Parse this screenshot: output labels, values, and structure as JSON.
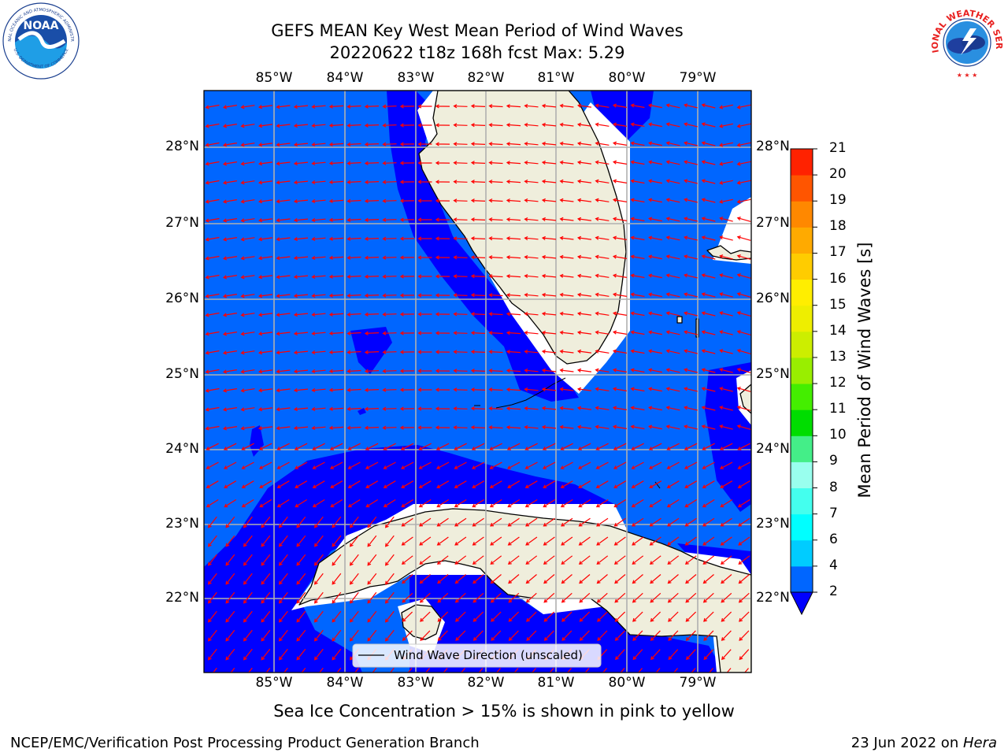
{
  "title_line1": "GEFS MEAN Key West Mean Period of Wind Waves",
  "title_line2": "20220622 t18z 168h fcst   Max: 5.29",
  "lon_ticks": [
    "85°W",
    "84°W",
    "83°W",
    "82°W",
    "81°W",
    "80°W",
    "79°W"
  ],
  "lat_ticks": [
    "28°N",
    "27°N",
    "26°N",
    "25°N",
    "24°N",
    "23°N",
    "22°N"
  ],
  "colorbar": {
    "label": "Mean Period of Wind Waves [s]",
    "ticks": [
      "2",
      "4",
      "6",
      "7",
      "8",
      "9",
      "10",
      "11",
      "12",
      "13",
      "14",
      "15",
      "16",
      "17",
      "18",
      "19",
      "20",
      "21"
    ],
    "colors": [
      "#0066ff",
      "#00ccff",
      "#00ffff",
      "#44ffee",
      "#99ffee",
      "#44ee88",
      "#00dd00",
      "#44ee00",
      "#99ee00",
      "#ccee00",
      "#eeee00",
      "#ffee00",
      "#ffcc00",
      "#ffaa00",
      "#ff8800",
      "#ff5500",
      "#ff2200"
    ],
    "under_color": "#0000ff"
  },
  "legend_label": "Wind Wave Direction (unscaled)",
  "ice_note": "Sea Ice Concentration > 15% is shown in pink to yellow",
  "footer_left": "NCEP/EMC/Verification Post Processing Product Generation Branch",
  "footer_date": "23 Jun 2022 on ",
  "footer_machine": "Hera",
  "noaa_logo_text": "NOAA",
  "noaa_ring_top": "NATIONAL OCEANIC AND ATMOSPHERIC ADMINISTRATION",
  "noaa_ring_bottom": "U.S. DEPARTMENT OF COMMERCE",
  "nws_ring_text": "NATIONAL WEATHER SERVICE",
  "colors": {
    "ocean": "#0066ff",
    "shelf": "#0000ff",
    "land": "#efeedc",
    "grid": "#b0b0b0",
    "arrow": "#ff0000"
  }
}
